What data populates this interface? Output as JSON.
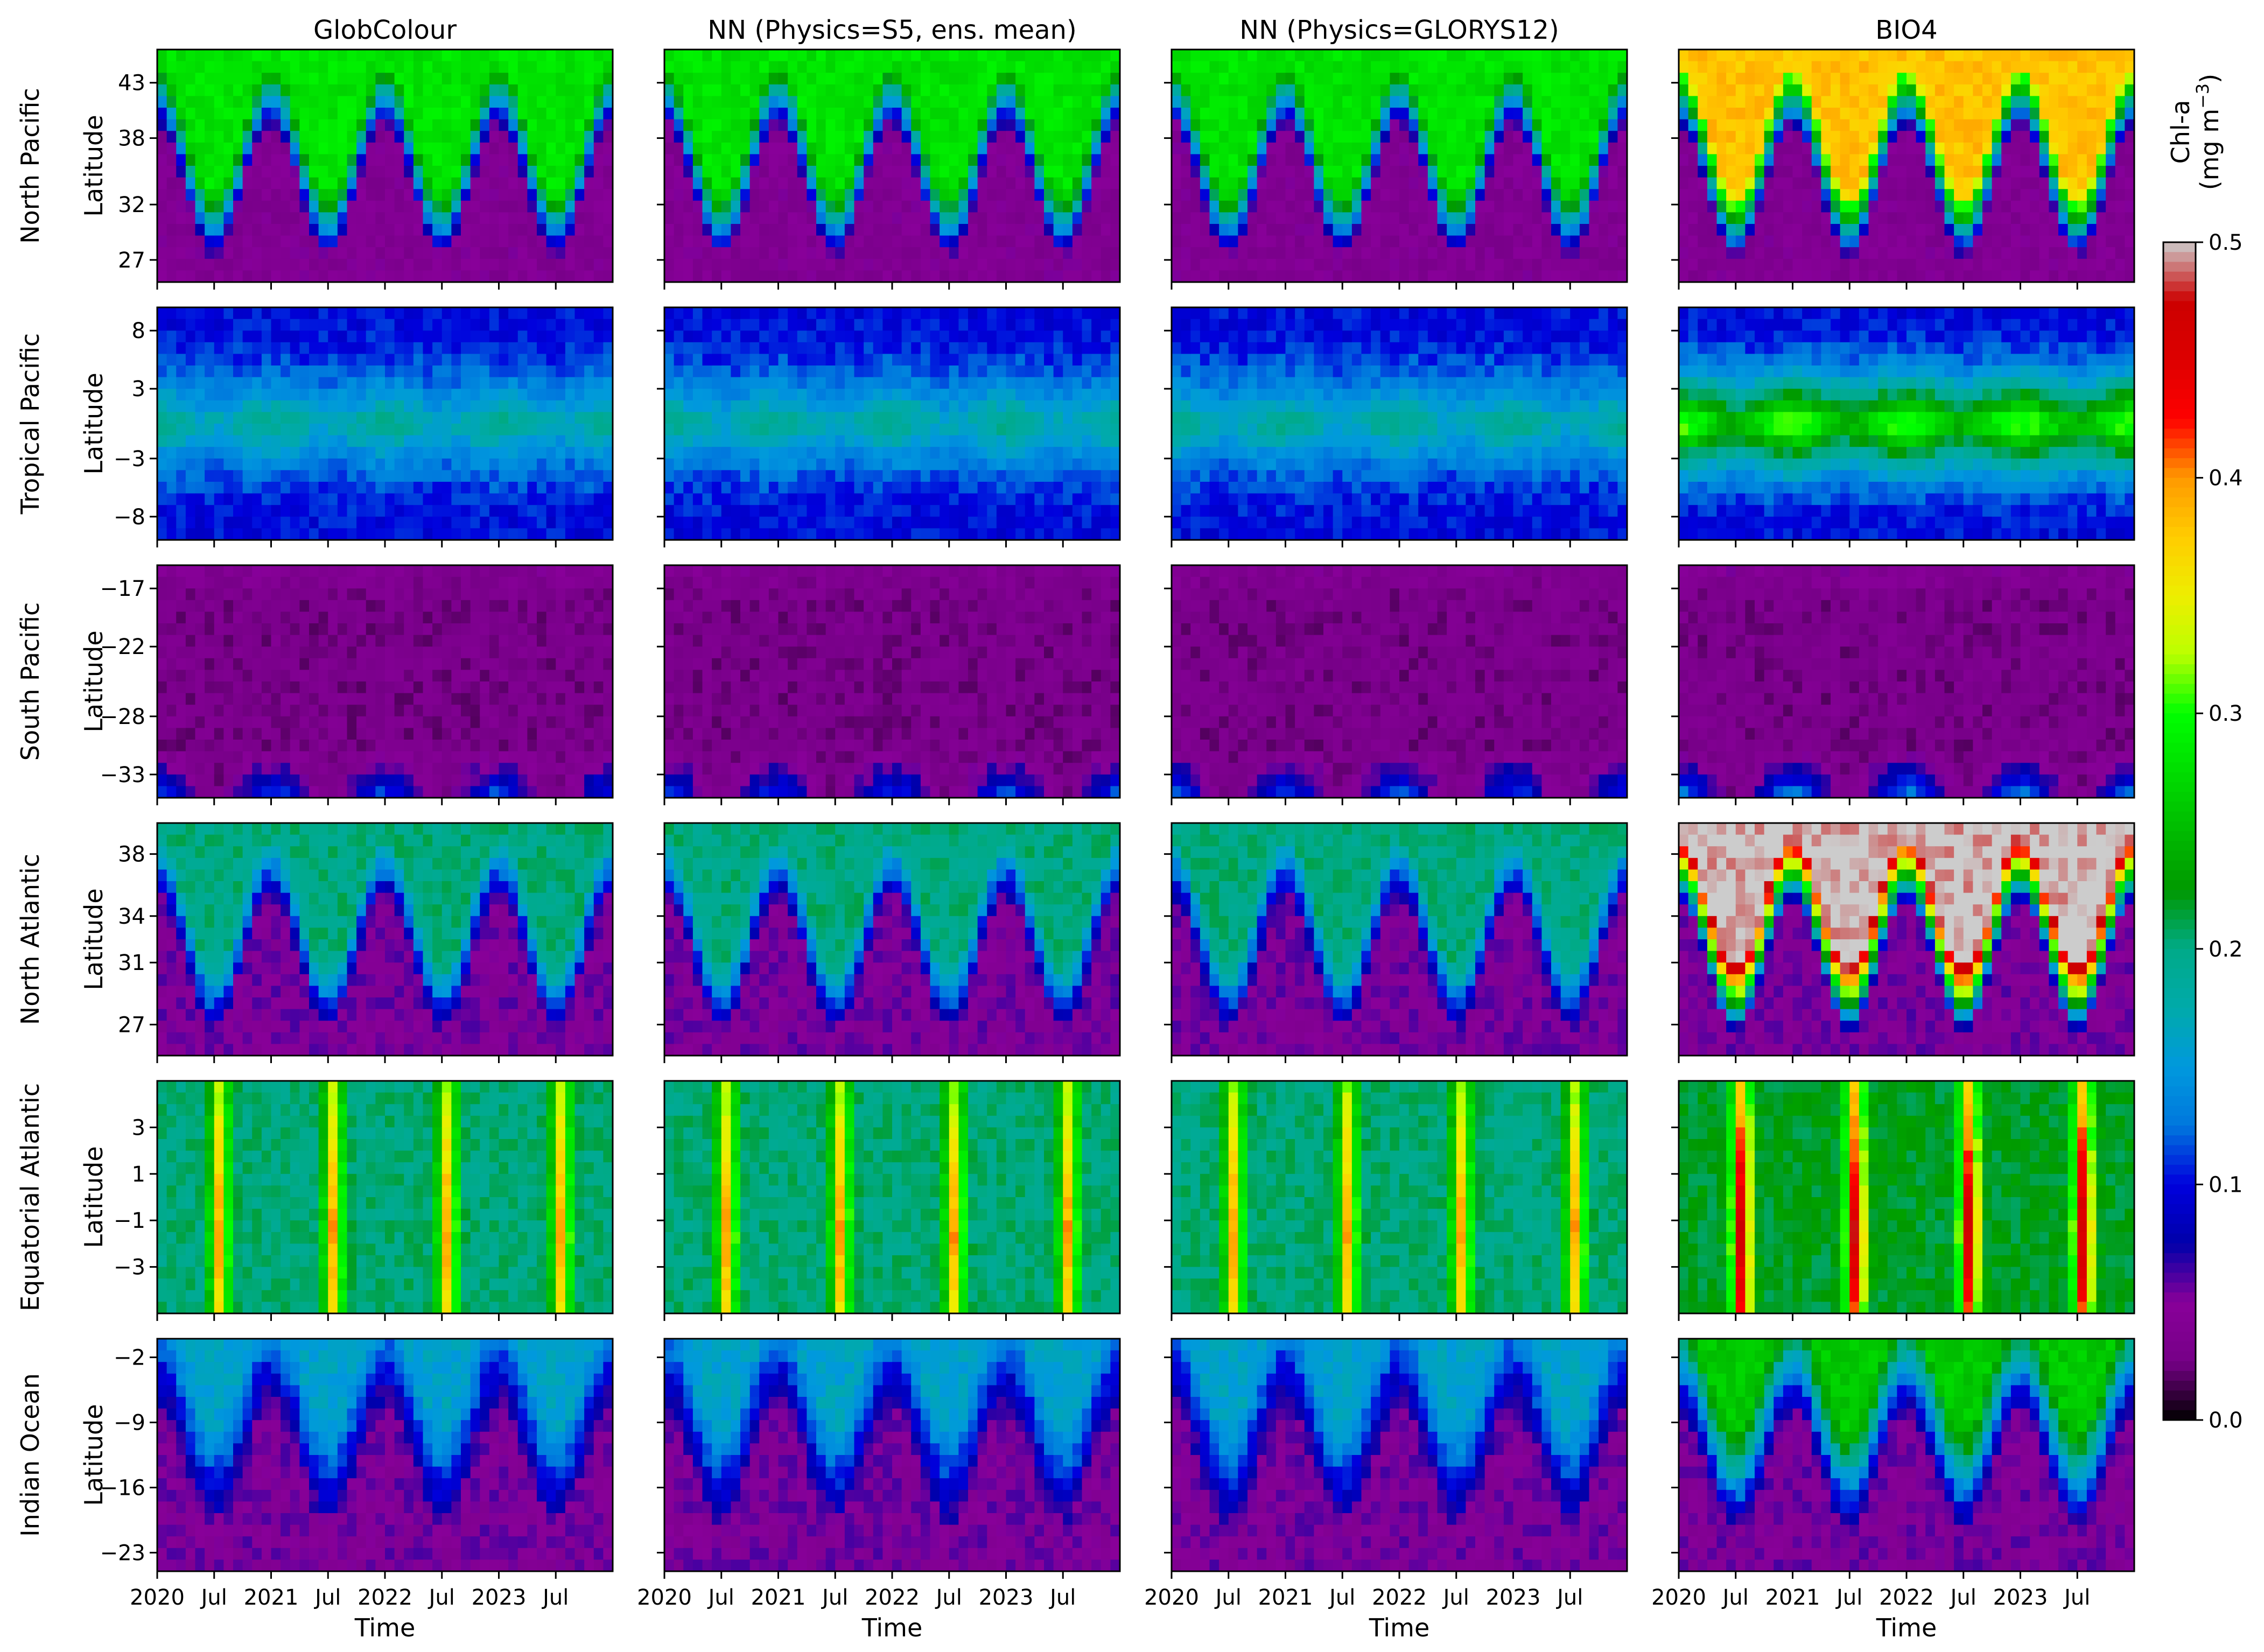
{
  "figure": {
    "row_ylabel": "Latitude",
    "xlabel": "Time",
    "time_tick_labels": [
      "2020",
      "Jul",
      "2021",
      "Jul",
      "2022",
      "Jul",
      "2023",
      "Jul"
    ]
  },
  "colorbar": {
    "label_line1": "Chl-a",
    "label_line2": "(mg m",
    "label_exp": "−3",
    "label_close": ")",
    "range": [
      0.0,
      0.5
    ],
    "ticks": [
      "0.0",
      "0.1",
      "0.2",
      "0.3",
      "0.4",
      "0.5"
    ],
    "colormap": "nipy_spectral",
    "over_color": "#cccccc"
  },
  "chart_data": {
    "type": "heatmap",
    "layout": "small multiples, 6 regions x 4 products",
    "products": [
      "GlobColour",
      "NN (Physics=S5, ens. mean)",
      "NN (Physics=GLORYS12)",
      "BIO4"
    ],
    "time_range": [
      "2020-01",
      "2023-12"
    ],
    "x_ticks": [
      "2020-01",
      "2020-07",
      "2021-01",
      "2021-07",
      "2022-01",
      "2022-07",
      "2023-01",
      "2023-07"
    ],
    "value_units": "mg m-3",
    "vlim": [
      0.0,
      0.5
    ],
    "regions": [
      {
        "name": "North Pacific",
        "ylim": [
          25,
          46
        ],
        "yticks": [
          27,
          32,
          38,
          43
        ],
        "pattern": "seasonal north-south oscillation",
        "low": 0.04,
        "high": 0.28,
        "bio4_high": 0.38
      },
      {
        "name": "Tropical Pacific",
        "ylim": [
          -10,
          10
        ],
        "yticks": [
          -8,
          -3,
          3,
          8
        ],
        "pattern": "equatorial band",
        "low": 0.1,
        "high": 0.2,
        "bio4_high": 0.33
      },
      {
        "name": "South Pacific",
        "ylim": [
          -35,
          -15
        ],
        "yticks": [
          -33,
          -28,
          -22,
          -17
        ],
        "pattern": "oligotrophic gyre",
        "low": 0.03,
        "high": 0.12,
        "bio4_high": 0.14
      },
      {
        "name": "North Atlantic",
        "ylim": [
          25,
          40
        ],
        "yticks": [
          27,
          31,
          34,
          38
        ],
        "pattern": "seasonal north-south oscillation",
        "low": 0.05,
        "high": 0.2,
        "bio4_high": 0.5
      },
      {
        "name": "Equatorial Atlantic",
        "ylim": [
          -5,
          5
        ],
        "yticks": [
          -3,
          -1,
          1,
          3
        ],
        "pattern": "seasonal summer bloom",
        "low": 0.14,
        "high": 0.42,
        "bio4_high": 0.5
      },
      {
        "name": "Indian Ocean",
        "ylim": [
          -25,
          0
        ],
        "yticks": [
          -23,
          -16,
          -9,
          -2
        ],
        "pattern": "seasonal north-south oscillation",
        "low": 0.05,
        "high": 0.16,
        "bio4_high": 0.26
      }
    ]
  }
}
